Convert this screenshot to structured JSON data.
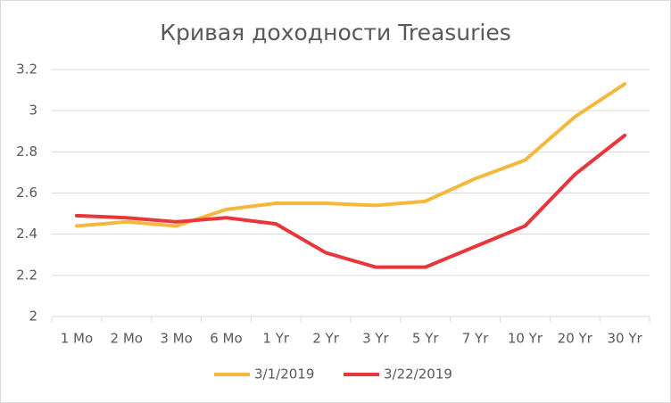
{
  "chart_data": {
    "type": "line",
    "title": "Кривая доходности Treasuries",
    "categories": [
      "1 Mo",
      "2 Mo",
      "3 Mo",
      "6 Mo",
      "1 Yr",
      "2 Yr",
      "3 Yr",
      "5 Yr",
      "7 Yr",
      "10 Yr",
      "20 Yr",
      "30 Yr"
    ],
    "series": [
      {
        "name": "3/1/2019",
        "color": "#f5b83d",
        "values": [
          2.44,
          2.46,
          2.44,
          2.52,
          2.55,
          2.55,
          2.54,
          2.56,
          2.67,
          2.76,
          2.97,
          3.13
        ]
      },
      {
        "name": "3/22/2019",
        "color": "#e8363b",
        "values": [
          2.49,
          2.48,
          2.46,
          2.48,
          2.45,
          2.31,
          2.24,
          2.24,
          2.34,
          2.44,
          2.69,
          2.88
        ]
      }
    ],
    "ylim": [
      2,
      3.2
    ],
    "yticks": [
      2,
      2.2,
      2.4,
      2.6,
      2.8,
      3,
      3.2
    ],
    "grid": true,
    "legend": "bottom"
  }
}
